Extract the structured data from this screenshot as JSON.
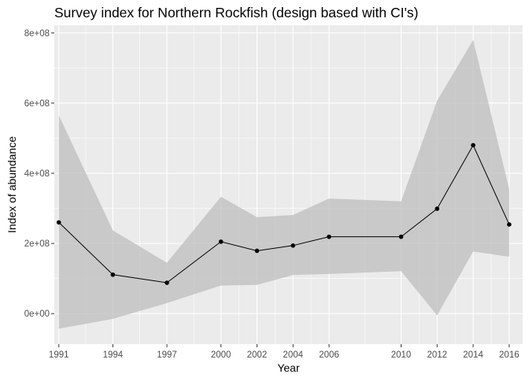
{
  "chart_data": {
    "type": "line",
    "title": "Survey index for Northern Rockfish (design based with CI's)",
    "xlabel": "Year",
    "ylabel": "Index of abundance",
    "x": [
      1991,
      1994,
      1997,
      2000,
      2002,
      2004,
      2006,
      2010,
      2012,
      2014,
      2016
    ],
    "x_tick_labels": [
      "1991",
      "1994",
      "1997",
      "2000",
      "2002",
      "2004",
      "2006",
      "2010",
      "2012",
      "2014",
      "2016"
    ],
    "series": [
      {
        "values": [
          260000000,
          111000000,
          88000000,
          205000000,
          179000000,
          194000000,
          219000000,
          219000000,
          299000000,
          480000000,
          254000000
        ],
        "lower": [
          -43000000,
          -15000000,
          30000000,
          80000000,
          82000000,
          110000000,
          113000000,
          121000000,
          -5000000,
          177000000,
          162000000
        ],
        "upper": [
          565000000,
          237000000,
          145000000,
          333000000,
          275000000,
          281000000,
          328000000,
          320000000,
          607000000,
          780000000,
          355000000
        ]
      }
    ],
    "y_ticks": [
      0,
      200000000,
      400000000,
      600000000,
      800000000
    ],
    "y_tick_labels": [
      "0e+00",
      "2e+08",
      "4e+08",
      "6e+08",
      "8e+08"
    ],
    "xlim": [
      1990.75,
      2016.75
    ],
    "ylim": [
      -87000000,
      822000000
    ],
    "grid": true,
    "colors": {
      "panel": "#ebebeb",
      "grid_major": "#ffffff",
      "ribbon": "#bdbdbd",
      "line": "#000000",
      "text": "#4d4d4d"
    }
  }
}
